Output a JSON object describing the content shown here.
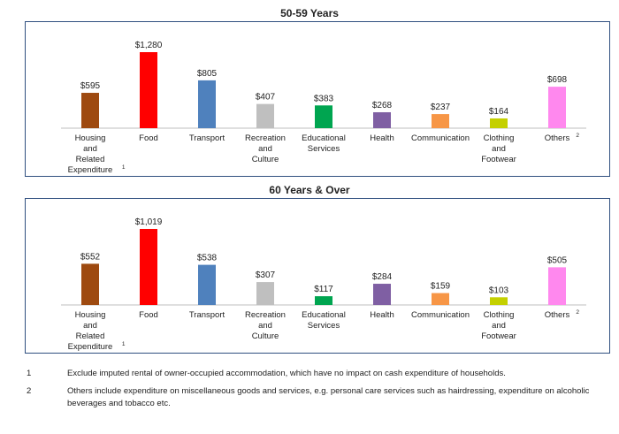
{
  "chart_data": [
    {
      "type": "bar",
      "title": "50-59 Years",
      "categories": [
        "Housing and Related Expenditure¹",
        "Food",
        "Transport",
        "Recreation and Culture",
        "Educational Services",
        "Health",
        "Communication",
        "Clothing and Footwear",
        "Others ²"
      ],
      "category_lines": [
        [
          "Housing",
          "and",
          "Related",
          "Expenditure"
        ],
        [
          "Food"
        ],
        [
          "Transport"
        ],
        [
          "Recreation",
          "and",
          "Culture"
        ],
        [
          "Educational",
          "Services"
        ],
        [
          "Health"
        ],
        [
          "Communication"
        ],
        [
          "Clothing",
          "and",
          "Footwear"
        ],
        [
          "Others"
        ]
      ],
      "category_notes": [
        "1",
        "",
        "",
        "",
        "",
        "",
        "",
        "",
        "2"
      ],
      "values": [
        595,
        1280,
        805,
        407,
        383,
        268,
        237,
        164,
        698
      ],
      "value_labels": [
        "$595",
        "$1,280",
        "$805",
        "$407",
        "$383",
        "$268",
        "$237",
        "$164",
        "$698"
      ],
      "colors": [
        "#9e4a10",
        "#ff0000",
        "#4f81bd",
        "#bfbfbf",
        "#00a550",
        "#7f5fa3",
        "#f79646",
        "#c4d000",
        "#ff88ee"
      ],
      "ylim": [
        0,
        1280
      ],
      "grid": false
    },
    {
      "type": "bar",
      "title": "60 Years & Over",
      "categories": [
        "Housing and Related Expenditure¹",
        "Food",
        "Transport",
        "Recreation and Culture",
        "Educational Services",
        "Health",
        "Communication",
        "Clothing and Footwear",
        "Others ²"
      ],
      "category_lines": [
        [
          "Housing",
          "and",
          "Related",
          "Expenditure"
        ],
        [
          "Food"
        ],
        [
          "Transport"
        ],
        [
          "Recreation",
          "and",
          "Culture"
        ],
        [
          "Educational",
          "Services"
        ],
        [
          "Health"
        ],
        [
          "Communication"
        ],
        [
          "Clothing",
          "and",
          "Footwear"
        ],
        [
          "Others"
        ]
      ],
      "category_notes": [
        "1",
        "",
        "",
        "",
        "",
        "",
        "",
        "",
        "2"
      ],
      "values": [
        552,
        1019,
        538,
        307,
        117,
        284,
        159,
        103,
        505
      ],
      "value_labels": [
        "$552",
        "$1,019",
        "$538",
        "$307",
        "$117",
        "$284",
        "$159",
        "$103",
        "$505"
      ],
      "colors": [
        "#9e4a10",
        "#ff0000",
        "#4f81bd",
        "#bfbfbf",
        "#00a550",
        "#7f5fa3",
        "#f79646",
        "#c4d000",
        "#ff88ee"
      ],
      "ylim": [
        0,
        1019
      ],
      "grid": false
    }
  ],
  "footnotes": [
    {
      "num": "1",
      "text": "Exclude imputed rental of owner-occupied accommodation, which have no impact on cash expenditure of households."
    },
    {
      "num": "2",
      "text": "Others include expenditure on miscellaneous goods and services, e.g. personal care services such as hairdressing, expenditure on alcoholic beverages and tobacco etc."
    }
  ]
}
